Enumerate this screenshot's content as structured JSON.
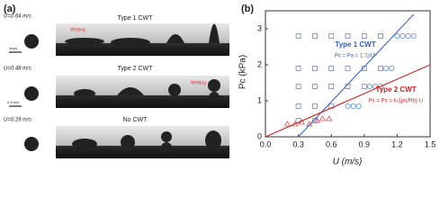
{
  "panel_a": {
    "label": "(a)",
    "rows": [
      {
        "speed": "U=0.64 m/s",
        "regime": "Type 1 CWT",
        "note": "Wetting"
      },
      {
        "speed": "U=0.48 m/s",
        "regime": "Type 2 CWT",
        "note": "Wetting"
      },
      {
        "speed": "U=0.29 m/s",
        "regime": "No CWT"
      }
    ],
    "scale_bars": [
      "1mm",
      "0.5 mm"
    ]
  },
  "chart_data": {
    "type": "scatter",
    "label": "(b)",
    "xlabel": "U (m/s)",
    "ylabel": "Pc (kPa)",
    "xlim": [
      0,
      1.5
    ],
    "ylim": [
      0,
      3.5
    ],
    "xticks": [
      {
        "value": 0,
        "label": "0.0"
      },
      0.3,
      0.6,
      0.9,
      1.2,
      1.5
    ],
    "yticks": [
      0,
      1,
      2,
      3
    ],
    "annotations": [
      "Type 1 CWT",
      "Pc = Pa = 1.7ρU²",
      "Type 2 CWT",
      "Pc = Ps = k√(ρη/Rb)·U"
    ],
    "series": [
      {
        "marker": "square",
        "color": "#7a86a8",
        "x": [
          0.3,
          0.45,
          0.6,
          0.75,
          0.9,
          1.05,
          0.3,
          0.45,
          0.6,
          0.75,
          0.9,
          1.05,
          0.3,
          0.45,
          0.6,
          0.75,
          0.9,
          0.3,
          0.45,
          0.6,
          0.3,
          0.45
        ],
        "values": [
          2.8,
          2.8,
          2.8,
          2.8,
          2.8,
          2.8,
          1.9,
          1.9,
          1.9,
          1.9,
          1.9,
          1.9,
          1.4,
          1.4,
          1.4,
          1.4,
          1.4,
          0.85,
          0.85,
          0.85,
          0.45,
          0.45
        ]
      },
      {
        "marker": "triangle",
        "color": "#d9534f",
        "x": [
          0.2,
          0.27,
          0.33,
          0.4,
          0.47,
          0.52,
          0.58
        ],
        "values": [
          0.35,
          0.35,
          0.4,
          0.35,
          0.45,
          0.5,
          0.5
        ]
      },
      {
        "marker": "circle",
        "color": "#5b8fd6",
        "x": [
          1.2,
          1.25,
          1.3,
          1.35,
          1.1,
          1.15,
          0.95,
          1.0,
          1.05,
          0.75,
          0.8,
          0.85
        ],
        "values": [
          2.8,
          2.8,
          2.8,
          2.8,
          1.9,
          1.9,
          1.4,
          1.4,
          1.4,
          0.85,
          0.85,
          0.85
        ]
      },
      {
        "marker": "line",
        "color": "#4a6fc4",
        "x": [
          0.3,
          1.35
        ],
        "values": [
          0,
          3.4
        ]
      },
      {
        "marker": "line",
        "color": "#cc2a2a",
        "x": [
          0,
          1.5
        ],
        "values": [
          0,
          2.0
        ]
      }
    ]
  }
}
